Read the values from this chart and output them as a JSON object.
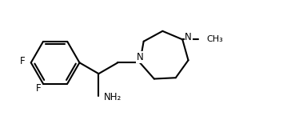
{
  "bg_color": "#ffffff",
  "bond_color": "#000000",
  "lw": 1.5,
  "figsize": [
    3.54,
    1.6
  ],
  "dpi": 100,
  "xlim": [
    0.0,
    10.5
  ],
  "ylim": [
    0.5,
    5.0
  ]
}
